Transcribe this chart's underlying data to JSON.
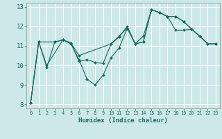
{
  "title": "",
  "xlabel": "Humidex (Indice chaleur)",
  "ylabel": "",
  "bg_color": "#cce8e8",
  "grid_color": "#ffffff",
  "line_color": "#1a6b5e",
  "xlim": [
    -0.5,
    23.5
  ],
  "ylim": [
    7.8,
    13.2
  ],
  "yticks": [
    8,
    9,
    10,
    11,
    12,
    13
  ],
  "xticks": [
    0,
    1,
    2,
    3,
    4,
    5,
    6,
    7,
    8,
    9,
    10,
    11,
    12,
    13,
    14,
    15,
    16,
    17,
    18,
    19,
    20,
    21,
    22,
    23
  ],
  "series1_x": [
    0,
    1,
    2,
    3,
    4,
    5,
    6,
    7,
    8,
    9,
    10,
    11,
    12,
    13,
    14,
    15,
    16,
    17,
    18,
    19,
    20,
    21,
    22,
    23
  ],
  "series1_y": [
    8.1,
    11.2,
    9.9,
    11.2,
    11.3,
    11.1,
    10.3,
    9.3,
    9.0,
    9.5,
    10.4,
    10.9,
    11.9,
    11.1,
    11.5,
    12.85,
    12.7,
    12.5,
    12.5,
    12.25,
    11.85,
    11.5,
    11.1,
    11.1
  ],
  "series2_x": [
    0,
    1,
    3,
    4,
    5,
    6,
    7,
    8,
    9,
    10,
    11,
    12,
    13,
    14,
    15,
    16,
    17,
    18,
    19,
    20,
    21,
    22,
    23
  ],
  "series2_y": [
    8.1,
    11.2,
    11.2,
    11.3,
    11.15,
    10.2,
    10.3,
    10.15,
    10.1,
    11.1,
    11.45,
    12.0,
    11.1,
    11.2,
    12.85,
    12.7,
    12.5,
    11.8,
    11.8,
    11.85,
    11.5,
    11.1,
    11.1
  ],
  "series3_x": [
    0,
    1,
    2,
    4,
    5,
    6,
    10,
    11,
    12,
    13,
    14,
    15,
    16,
    17,
    18,
    19,
    20,
    21,
    22,
    23
  ],
  "series3_y": [
    8.1,
    11.2,
    10.0,
    11.3,
    11.15,
    10.5,
    11.1,
    11.5,
    11.9,
    11.1,
    11.2,
    12.85,
    12.7,
    12.5,
    12.5,
    12.25,
    11.85,
    11.5,
    11.1,
    11.1
  ]
}
